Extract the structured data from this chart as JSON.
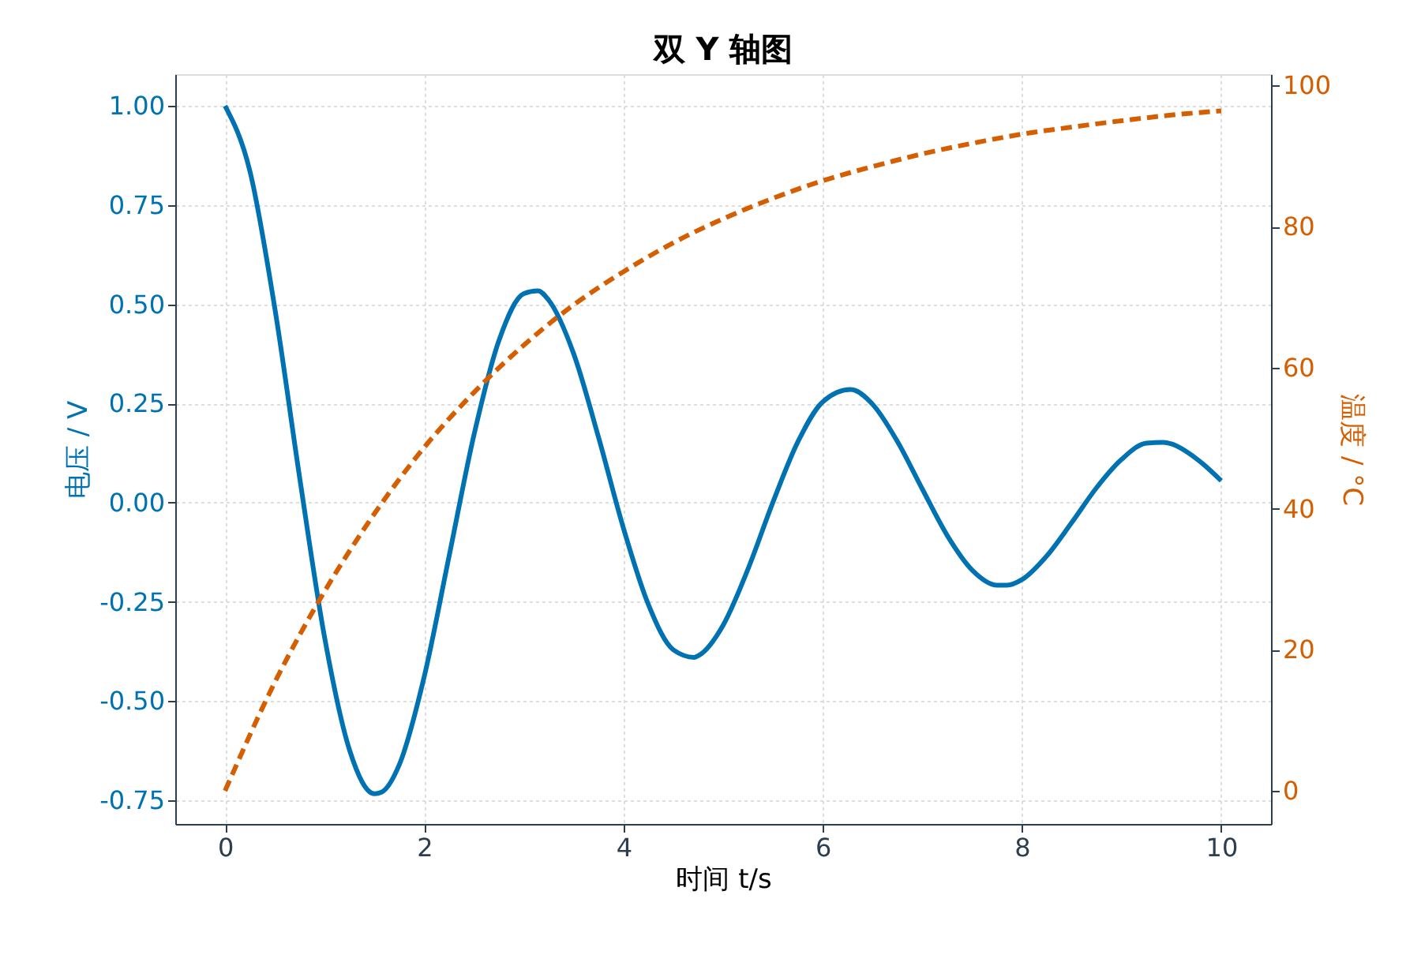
{
  "chart_data": {
    "type": "line",
    "title": "双 Y 轴图",
    "xlabel": "时间 t/s",
    "ylabel": "电压 / V",
    "y2label": "温度 / °C",
    "xlim": [
      -0.5,
      10.5
    ],
    "xticks": [
      0,
      2,
      4,
      6,
      8,
      10
    ],
    "ylim": [
      -0.81,
      1.08
    ],
    "yticks": [
      {
        "value": -0.75,
        "label": "-0.75"
      },
      {
        "value": -0.5,
        "label": "-0.50"
      },
      {
        "value": -0.25,
        "label": "-0.25"
      },
      {
        "value": 0,
        "label": "0.00"
      },
      {
        "value": 0.25,
        "label": "0.25"
      },
      {
        "value": 0.5,
        "label": "0.50"
      },
      {
        "value": 0.75,
        "label": "0.75"
      },
      {
        "value": 1,
        "label": "1.00"
      }
    ],
    "y2lim": [
      -4.7,
      101.6
    ],
    "y2ticks": [
      0,
      20,
      40,
      60,
      80,
      100
    ],
    "grid": true,
    "marker": "none",
    "series": [
      {
        "name": null,
        "color": "#0072b2",
        "line_style": "solid",
        "axis": "y",
        "x": [
          0,
          0.25,
          0.5,
          0.75,
          1,
          1.25,
          1.5,
          1.57,
          1.75,
          2,
          2.25,
          2.5,
          2.75,
          3,
          3.14,
          3.25,
          3.5,
          3.75,
          4,
          4.25,
          4.5,
          4.71,
          4.75,
          5,
          5.25,
          5.5,
          5.75,
          6,
          6.28,
          6.5,
          6.75,
          7,
          7.25,
          7.5,
          7.75,
          7.85,
          8,
          8.25,
          8.5,
          8.75,
          9,
          9.25,
          9.42,
          9.5,
          9.75,
          10
        ],
        "values": [
          1.0,
          0.835,
          0.489,
          0.061,
          -0.341,
          -0.624,
          -0.734,
          -0.73,
          -0.66,
          -0.438,
          -0.134,
          0.172,
          0.409,
          0.527,
          0.534,
          0.51,
          0.375,
          0.164,
          -0.065,
          -0.257,
          -0.371,
          -0.39,
          -0.386,
          -0.309,
          -0.167,
          0.001,
          0.153,
          0.254,
          0.285,
          0.248,
          0.154,
          0.034,
          -0.083,
          -0.17,
          -0.208,
          -0.208,
          -0.194,
          -0.134,
          -0.05,
          0.038,
          0.109,
          0.15,
          0.152,
          0.148,
          0.111,
          0.055
        ]
      },
      {
        "name": null,
        "color": "#d55e00",
        "line_style": "dashed",
        "axis": "y2",
        "x": [
          0,
          0.5,
          1,
          1.5,
          2,
          2.5,
          3,
          3.5,
          4,
          4.5,
          5,
          5.5,
          6,
          6.5,
          7,
          7.5,
          8,
          8.5,
          9,
          9.5,
          10
        ],
        "values": [
          0,
          15.4,
          28.3,
          39.3,
          48.7,
          56.5,
          63.2,
          68.9,
          73.6,
          77.7,
          81.1,
          84.0,
          86.5,
          88.5,
          90.3,
          91.8,
          93.1,
          94.1,
          95.0,
          95.8,
          96.4
        ]
      }
    ]
  }
}
